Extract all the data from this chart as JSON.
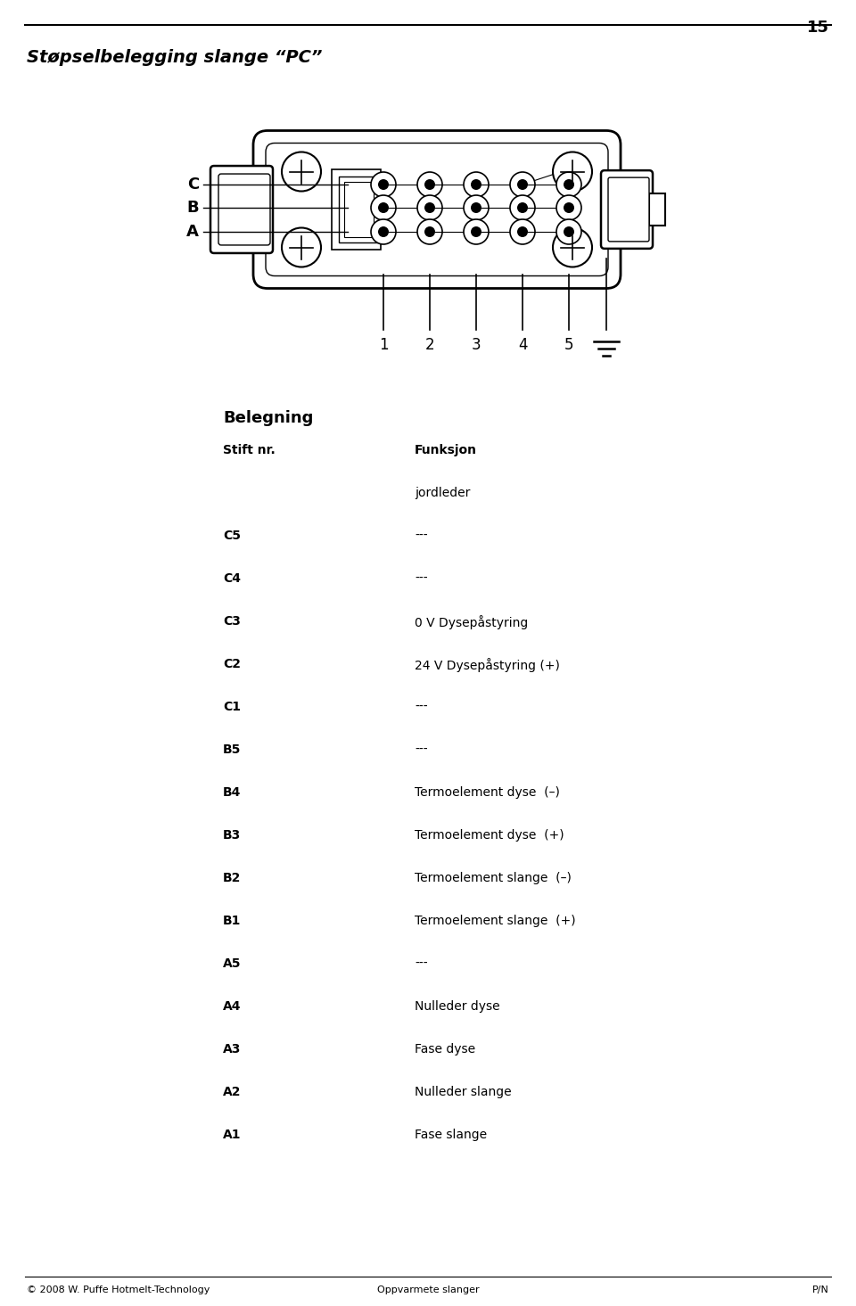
{
  "page_number": "15",
  "title": "Støpselbelegging slange “PC”",
  "section_heading": "Belegning",
  "col1_header": "Stift nr.",
  "col2_header": "Funksjon",
  "rows": [
    {
      "stift": "",
      "funksjon": "jordleder"
    },
    {
      "stift": "C5",
      "funksjon": "---"
    },
    {
      "stift": "C4",
      "funksjon": "---"
    },
    {
      "stift": "C3",
      "funksjon": "0 V Dysepåstyring"
    },
    {
      "stift": "C2",
      "funksjon": "24 V Dysepåstyring (+)"
    },
    {
      "stift": "C1",
      "funksjon": "---"
    },
    {
      "stift": "B5",
      "funksjon": "---"
    },
    {
      "stift": "B4",
      "funksjon": "Termoelement dyse  (–)"
    },
    {
      "stift": "B3",
      "funksjon": "Termoelement dyse  (+)"
    },
    {
      "stift": "B2",
      "funksjon": "Termoelement slange  (–)"
    },
    {
      "stift": "B1",
      "funksjon": "Termoelement slange  (+)"
    },
    {
      "stift": "A5",
      "funksjon": "---"
    },
    {
      "stift": "A4",
      "funksjon": "Nulleder dyse"
    },
    {
      "stift": "A3",
      "funksjon": "Fase dyse"
    },
    {
      "stift": "A2",
      "funksjon": "Nulleder slange"
    },
    {
      "stift": "A1",
      "funksjon": "Fase slange"
    }
  ],
  "footer_left": "© 2008 W. Puffe Hotmelt‐Technology",
  "footer_center": "Oppvarmete slanger",
  "footer_right": "P/N",
  "bg_color": "#ffffff",
  "text_color": "#000000"
}
